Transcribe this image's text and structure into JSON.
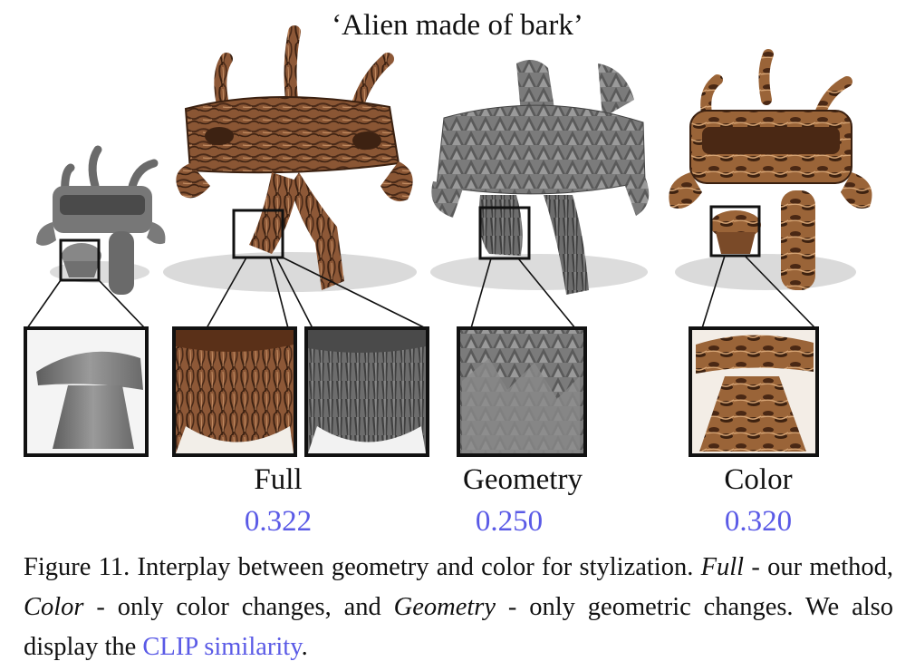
{
  "figure": {
    "prompt_title": "‘Alien made of bark’",
    "panels": [
      {
        "id": "input",
        "label": "",
        "score": ""
      },
      {
        "id": "full",
        "label": "Full",
        "score": "0.322"
      },
      {
        "id": "geometry",
        "label": "Geometry",
        "score": "0.250"
      },
      {
        "id": "color",
        "label": "Color",
        "score": "0.320"
      }
    ],
    "colors": {
      "clip_highlight": "#5a5ae6",
      "bark_dark": "#4a2a18",
      "bark_mid": "#8a5634",
      "bark_light": "#c08a60",
      "gray_mesh": "#7a7a7a",
      "shadow": "#d9d9d9"
    }
  },
  "caption": {
    "figure_number": "Figure 11.",
    "text_1": " Interplay between geometry and color for stylization. ",
    "term_full": "Full",
    "text_2": " - our method, ",
    "term_color": "Color",
    "text_3": " - only color changes, and ",
    "term_geometry": "Geometry",
    "text_4": " - only geometric changes. We also display the ",
    "clip_link": "CLIP similarity",
    "text_5": "."
  }
}
